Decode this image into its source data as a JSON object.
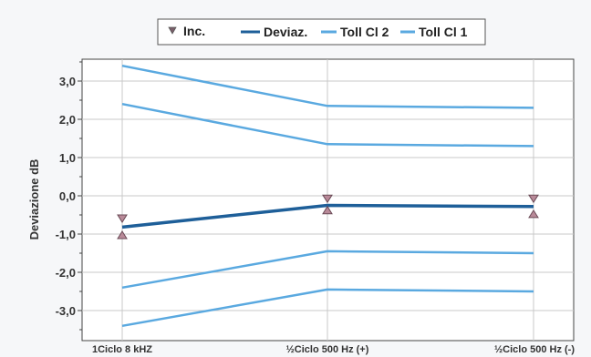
{
  "chart_data": {
    "type": "line",
    "categories": [
      "1Ciclo 8 kHZ",
      "½Ciclo 500 Hz (+)",
      "½Ciclo 500 Hz (-)"
    ],
    "ylabel": "Deviazione dB",
    "xlabel": "",
    "ylim": [
      -3.5,
      3.5
    ],
    "yticks": [
      "3,0",
      "2,0",
      "1,0",
      "0,0",
      "-1,0",
      "-2,0",
      "-3,0"
    ],
    "ytick_values": [
      3,
      2,
      1,
      0,
      -1,
      -2,
      -3
    ],
    "grid": true,
    "legend_position": "top",
    "legend": [
      {
        "label": "Inc.",
        "marker": "triangle-down"
      },
      {
        "label": "Deviaz.",
        "color": "#1e5f99"
      },
      {
        "label": "Toll Cl 2",
        "color": "#5aa9e0"
      },
      {
        "label": "Toll Cl 1",
        "color": "#5aa9e0"
      }
    ],
    "series": [
      {
        "name": "Deviaz.",
        "values": [
          -0.82,
          -0.25,
          -0.28
        ],
        "color": "#1e5f99"
      },
      {
        "name": "Toll Cl 2",
        "values": [
          3.4,
          2.35,
          2.3
        ],
        "color": "#5aa9e0"
      },
      {
        "name": "Toll Cl 1",
        "values": [
          2.4,
          1.35,
          1.3
        ],
        "color": "#5aa9e0"
      },
      {
        "name": "Toll Cl 1",
        "values": [
          -2.4,
          -1.45,
          -1.5
        ],
        "color": "#5aa9e0"
      },
      {
        "name": "Toll Cl 2",
        "values": [
          -3.4,
          -2.45,
          -2.5
        ],
        "color": "#5aa9e0"
      }
    ],
    "uncertainty": {
      "name": "Inc.",
      "lower": [
        -1.0,
        -0.35,
        -0.45
      ],
      "upper": [
        -0.62,
        -0.1,
        -0.1
      ]
    }
  }
}
